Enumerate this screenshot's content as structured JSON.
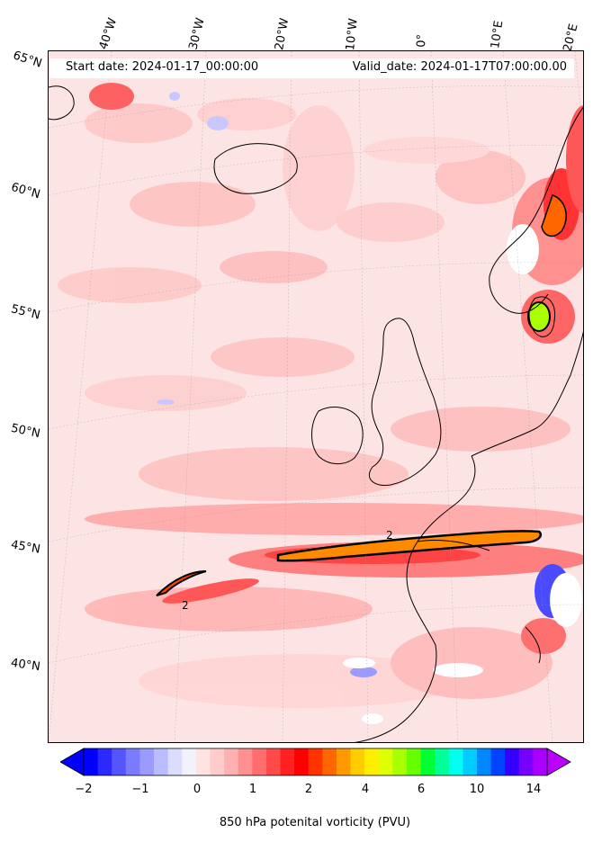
{
  "map": {
    "title_left": "Start date: 2024-01-17_00:00:00",
    "title_right": "Valid_date: 2024-01-17T07:00:00.00",
    "variable": "850 hPa potenital vorticity (PVU)",
    "longitude_labels": [
      "40°W",
      "30°W",
      "20°W",
      "10°W",
      "0°",
      "10°E",
      "20°E"
    ],
    "latitude_labels": [
      "65°N",
      "60°N",
      "55°N",
      "50°N",
      "45°N",
      "40°N"
    ],
    "contour_label": "2"
  },
  "colorbar": {
    "tick_labels": [
      "−2",
      "−1",
      "0",
      "1",
      "2",
      "4",
      "6",
      "10",
      "14"
    ],
    "colors": [
      "#0000ff",
      "#2a2aff",
      "#5555ff",
      "#7b7bff",
      "#9a9aff",
      "#bbbbff",
      "#dcdcff",
      "#f2f2ff",
      "#ffe2e2",
      "#ffcccc",
      "#ffb0b0",
      "#ff9090",
      "#ff6e6e",
      "#ff4a4a",
      "#ff2020",
      "#ff0000",
      "#ff3300",
      "#ff6600",
      "#ff9900",
      "#ffcc00",
      "#ffee00",
      "#ddff00",
      "#a8ff00",
      "#66ff00",
      "#00ff33",
      "#00ff99",
      "#00ffee",
      "#00ccff",
      "#0088ff",
      "#0044ff",
      "#3300ff",
      "#7700ff",
      "#aa00ff"
    ],
    "extend_min_color": "#0000ff",
    "extend_max_color": "#bb00ff"
  }
}
